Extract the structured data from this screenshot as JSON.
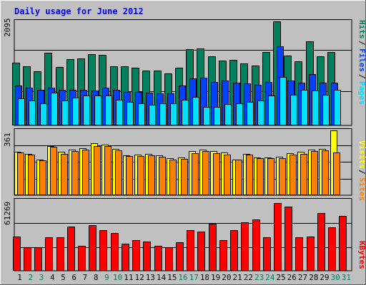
{
  "colors": {
    "background": "#c0c0c0",
    "title": "#0000ff",
    "hits": "#00805c",
    "files": "#0040ff",
    "pages": "#00e0ff",
    "visits": "#ffff00",
    "sites": "#ff8000",
    "kbytes": "#ff0000",
    "weekday_label": "#000000",
    "weekend_label": "#00805c",
    "separator": "#000000"
  },
  "chart_data": {
    "title": "Daily usage for June 2012",
    "days": [
      "1",
      "2",
      "3",
      "4",
      "5",
      "6",
      "7",
      "8",
      "9",
      "10",
      "11",
      "12",
      "13",
      "14",
      "15",
      "16",
      "17",
      "18",
      "19",
      "20",
      "21",
      "22",
      "23",
      "24",
      "25",
      "26",
      "27",
      "28",
      "29",
      "30",
      "31"
    ],
    "weekend_days": [
      "2",
      "3",
      "9",
      "10",
      "16",
      "17",
      "23",
      "24",
      "30",
      "31"
    ],
    "panels": [
      {
        "type": "bar",
        "max_label": "2095",
        "ylim": [
          0,
          2095
        ],
        "legend": [
          "Pages",
          "Files",
          "Hits"
        ],
        "series": [
          {
            "name": "Hits",
            "values": [
              1262,
              1197,
              1085,
              1470,
              1171,
              1331,
              1345,
              1429,
              1416,
              1197,
              1197,
              1156,
              1102,
              1102,
              1048,
              1157,
              1537,
              1551,
              1386,
              1305,
              1319,
              1251,
              1210,
              1483,
              2095,
              1401,
              1292,
              1688,
              1387,
              1483,
              0
            ]
          },
          {
            "name": "Files",
            "values": [
              800,
              760,
              720,
              760,
              720,
              720,
              720,
              700,
              760,
              720,
              680,
              680,
              660,
              640,
              640,
              800,
              950,
              960,
              880,
              900,
              860,
              840,
              820,
              880,
              1590,
              900,
              860,
              1040,
              860,
              860,
              0
            ]
          },
          {
            "name": "Pages",
            "values": [
              540,
              500,
              450,
              660,
              500,
              560,
              600,
              600,
              600,
              520,
              480,
              450,
              410,
              450,
              450,
              510,
              580,
              380,
              370,
              430,
              440,
              470,
              500,
              600,
              980,
              620,
              720,
              700,
              620,
              720,
              0
            ]
          }
        ]
      },
      {
        "type": "bar",
        "max_label": "361",
        "ylim": [
          0,
          361
        ],
        "legend": [
          "Sites",
          "Visits"
        ],
        "series": [
          {
            "name": "Visits",
            "values": [
              241,
              232,
              197,
              272,
              241,
              255,
              262,
              289,
              282,
              258,
              223,
              225,
              229,
              222,
              205,
              211,
              244,
              253,
              244,
              237,
              200,
              232,
              212,
              211,
              214,
              233,
              241,
              253,
              258,
              361,
              0
            ]
          },
          {
            "name": "Sites",
            "values": [
              237,
              225,
              194,
              268,
              229,
              246,
              253,
              275,
              272,
              250,
              218,
              217,
              222,
              214,
              198,
              203,
              234,
              245,
              235,
              228,
              197,
              225,
              208,
              207,
              208,
              225,
              229,
              245,
              250,
              240,
              0
            ]
          }
        ]
      },
      {
        "type": "bar",
        "max_label": "61269",
        "ylim": [
          0,
          61269
        ],
        "legend": [
          "KBytes"
        ],
        "series": [
          {
            "name": "KBytes",
            "values": [
              29600,
              20400,
              20400,
              29100,
              29100,
              38300,
              21700,
              39700,
              35400,
              32600,
              23800,
              26800,
              25400,
              21500,
              20400,
              25000,
              35400,
              34000,
              40800,
              26800,
              35400,
              41900,
              44600,
              29100,
              58500,
              55800,
              29100,
              29900,
              50400,
              37800,
              47600
            ]
          }
        ]
      }
    ]
  }
}
